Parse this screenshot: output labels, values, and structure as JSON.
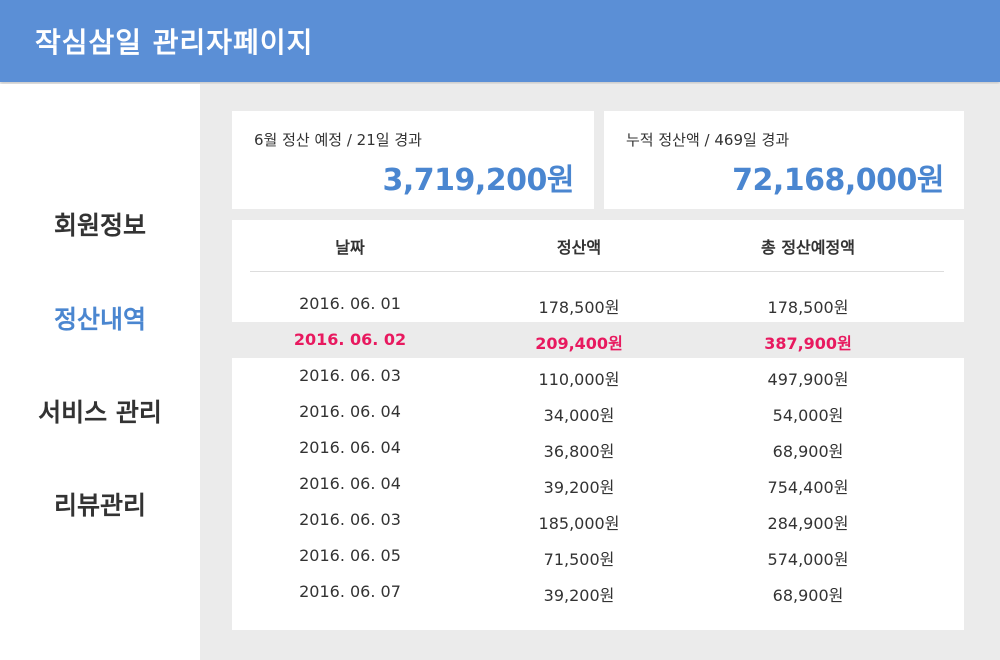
{
  "header": {
    "title": "작심삼일 관리자페이지"
  },
  "sidebar": {
    "items": [
      {
        "label": "회원정보",
        "active": false
      },
      {
        "label": "정산내역",
        "active": true
      },
      {
        "label": "서비스 관리",
        "active": false
      },
      {
        "label": "리뷰관리",
        "active": false
      }
    ]
  },
  "summary": {
    "monthly": {
      "label": "6월 정산 예정 / 21일 경과",
      "value": "3,719,200원"
    },
    "cumulative": {
      "label": "누적 정산액 / 469일 경과",
      "value": "72,168,000원"
    }
  },
  "table": {
    "headers": [
      "날짜",
      "정산액",
      "총 정산예정액"
    ],
    "rows": [
      {
        "date": "2016. 06. 01",
        "amount": "178,500원",
        "total": "178,500원",
        "highlight": false
      },
      {
        "date": "2016. 06. 02",
        "amount": "209,400원",
        "total": "387,900원",
        "highlight": true
      },
      {
        "date": "2016. 06. 03",
        "amount": "110,000원",
        "total": "497,900원",
        "highlight": false
      },
      {
        "date": "2016. 06. 04",
        "amount": "34,000원",
        "total": "54,000원",
        "highlight": false
      },
      {
        "date": "2016. 06. 04",
        "amount": "36,800원",
        "total": "68,900원",
        "highlight": false
      },
      {
        "date": "2016. 06. 04",
        "amount": "39,200원",
        "total": "754,400원",
        "highlight": false
      },
      {
        "date": "2016. 06. 03",
        "amount": "185,000원",
        "total": "284,900원",
        "highlight": false
      },
      {
        "date": "2016. 06. 05",
        "amount": "71,500원",
        "total": "574,000원",
        "highlight": false
      },
      {
        "date": "2016. 06. 07",
        "amount": "39,200원",
        "total": "68,900원",
        "highlight": false
      }
    ]
  },
  "colors": {
    "header_bg": "#5b8fd6",
    "accent_blue": "#4a86d0",
    "highlight_red": "#e8195f",
    "content_bg": "#ebebeb"
  }
}
